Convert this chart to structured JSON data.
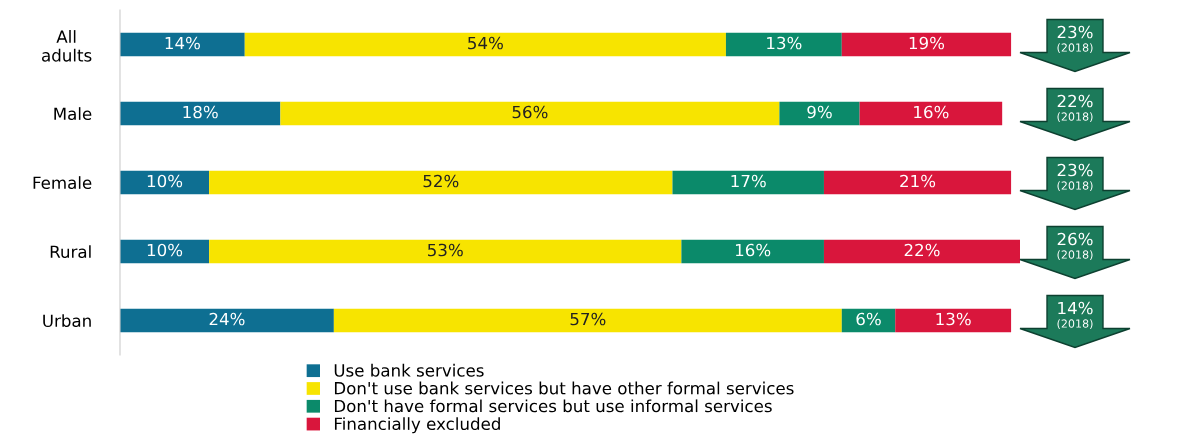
{
  "chart_data": {
    "type": "bar",
    "orientation": "horizontal",
    "stacked": true,
    "categories": [
      "All\nadults",
      "Male",
      "Female",
      "Rural",
      "Urban"
    ],
    "series": [
      {
        "name": "Use bank services",
        "color": "#0e6f92",
        "values": [
          14,
          18,
          10,
          10,
          24
        ],
        "value_labels": [
          "14%",
          "18%",
          "10%",
          "10%",
          "24%"
        ]
      },
      {
        "name": "Don't use bank services but have other formal services",
        "color": "#f7e400",
        "values": [
          54,
          56,
          52,
          53,
          57
        ],
        "value_labels": [
          "54%",
          "56%",
          "52%",
          "53%",
          "57%"
        ]
      },
      {
        "name": "Don't have formal services but use informal services",
        "color": "#0b8a6a",
        "values": [
          13,
          9,
          17,
          16,
          6
        ],
        "value_labels": [
          "13%",
          "9%",
          "17%",
          "16%",
          "6%"
        ]
      },
      {
        "name": "Financially excluded",
        "color": "#d9163c",
        "values": [
          19,
          16,
          21,
          22,
          13
        ],
        "value_labels": [
          "19%",
          "16%",
          "21%",
          "22%",
          "13%"
        ]
      }
    ],
    "annotations": [
      "23%\n(2018)",
      "22%\n(2018)",
      "23%\n(2018)",
      "26%\n(2018)",
      "14%\n(2018)"
    ],
    "tick_labels": "y",
    "grid": false,
    "legend": "bottom"
  }
}
